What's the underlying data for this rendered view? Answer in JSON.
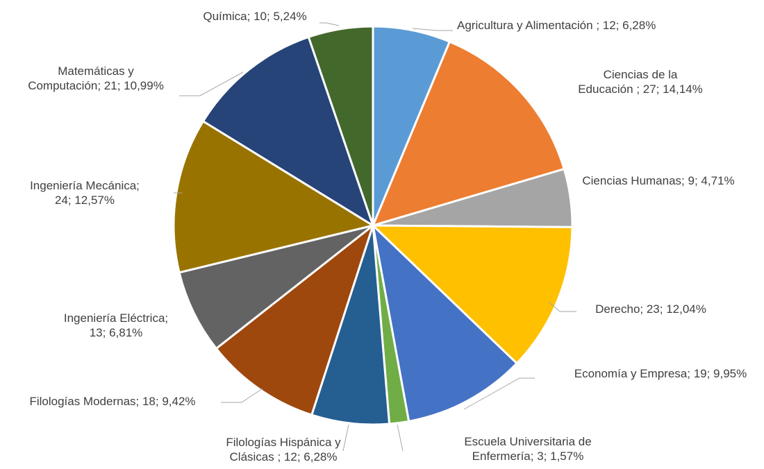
{
  "chart_data": {
    "type": "pie",
    "title": "",
    "label_format": "{name}; {value}; {percent}",
    "slices": [
      {
        "name": "Agricultura y Alimentación ",
        "value": 12,
        "percent": "6,28%",
        "color": "#5B9BD5",
        "label_lines": [
          "Agricultura y Alimentación  ; 12; 6,28%"
        ]
      },
      {
        "name": "Ciencias de la Educación ",
        "value": 27,
        "percent": "14,14%",
        "color": "#ED7D31",
        "label_lines": [
          "Ciencias de la",
          "Educación  ; 27; 14,14%"
        ]
      },
      {
        "name": "Ciencias Humanas",
        "value": 9,
        "percent": "4,71%",
        "color": "#A5A5A5",
        "label_lines": [
          "Ciencias Humanas;  9; 4,71%"
        ]
      },
      {
        "name": "Derecho",
        "value": 23,
        "percent": "12,04%",
        "color": "#FFC000",
        "label_lines": [
          "Derecho; 23; 12,04%"
        ]
      },
      {
        "name": "Economía y Empresa",
        "value": 19,
        "percent": "9,95%",
        "color": "#4472C4",
        "label_lines": [
          "Economía y Empresa; 19; 9,95%"
        ]
      },
      {
        "name": "Escuela Universitaria de Enfermería",
        "value": 3,
        "percent": "1,57%",
        "color": "#70AD47",
        "label_lines": [
          "Escuela Universitaria de",
          "Enfermería; 3; 1,57%"
        ]
      },
      {
        "name": "Filologías Hispánica y Clásicas ",
        "value": 12,
        "percent": "6,28%",
        "color": "#255E91",
        "label_lines": [
          "Filologías Hispánica y",
          "Clásicas ; 12; 6,28%"
        ]
      },
      {
        "name": "Filologías Modernas",
        "value": 18,
        "percent": "9,42%",
        "color": "#9E480E",
        "label_lines": [
          "Filologías Modernas; 18; 9,42%"
        ]
      },
      {
        "name": "Ingeniería Eléctrica",
        "value": 13,
        "percent": "6,81%",
        "color": "#636363",
        "label_lines": [
          "Ingeniería Eléctrica;",
          "13; 6,81%"
        ]
      },
      {
        "name": "Ingeniería Mecánica",
        "value": 24,
        "percent": "12,57%",
        "color": "#997300",
        "label_lines": [
          "Ingeniería Mecánica;",
          "24; 12,57%"
        ]
      },
      {
        "name": "Matemáticas y Computación",
        "value": 21,
        "percent": "10,99%",
        "color": "#264478",
        "label_lines": [
          "Matemáticas  y",
          "Computación; 21; 10,99%"
        ]
      },
      {
        "name": "Química",
        "value": 10,
        "percent": "5,24%",
        "color": "#43682B",
        "label_lines": [
          "Química; 10; 5,24%"
        ]
      }
    ],
    "legend": "none",
    "start_angle": "12 o'clock",
    "direction": "clockwise"
  }
}
